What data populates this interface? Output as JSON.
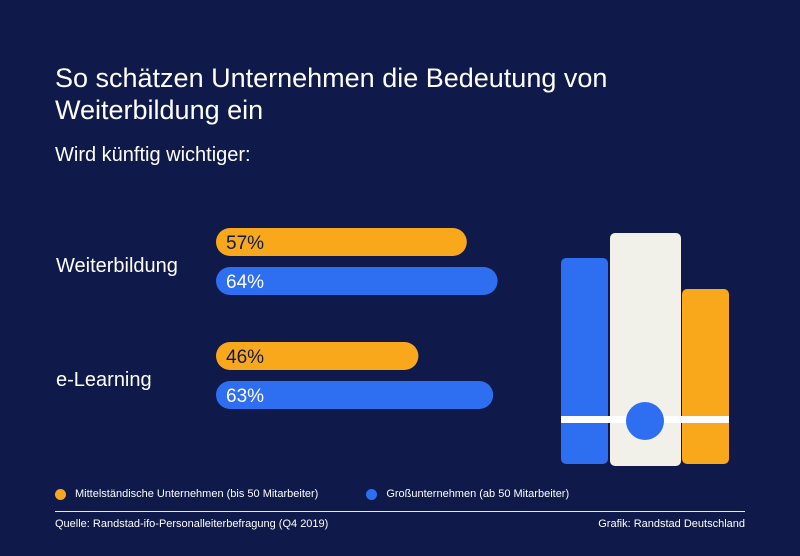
{
  "header": {
    "title": "So schätzen Unternehmen die Bedeutung von Weiterbildung ein",
    "subtitle": "Wird künftig wichtiger:"
  },
  "chart_data": {
    "type": "bar",
    "orientation": "horizontal",
    "title": "So schätzen Unternehmen die Bedeutung von Weiterbildung ein",
    "subtitle": "Wird künftig wichtiger:",
    "categories": [
      "Weiterbildung",
      "e-Learning"
    ],
    "series": [
      {
        "name": "Mittelständische Unternehmen (bis 50 Mitarbeiter)",
        "values": [
          57,
          46
        ],
        "labels": [
          "57%",
          "46%"
        ],
        "color": "#f9a81c"
      },
      {
        "name": "Großunternehmen (ab 50 Mitarbeiter)",
        "values": [
          64,
          63
        ],
        "labels": [
          "64%",
          "63%"
        ],
        "color": "#2e6ef0"
      }
    ],
    "xlim": [
      0,
      100
    ],
    "unit": "%",
    "grid": false,
    "legend_position": "bottom-left"
  },
  "legend": {
    "items": [
      {
        "label": "Mittelständische Unternehmen (bis 50 Mitarbeiter)",
        "color": "#f9a81c"
      },
      {
        "label": "Großunternehmen (ab 50 Mitarbeiter)",
        "color": "#2e6ef0"
      }
    ]
  },
  "footer": {
    "source": "Quelle: Randstad-ifo-Personalleiterbefragung (Q4 2019)",
    "credit": "Grafik: Randstad Deutschland"
  },
  "colors": {
    "background": "#0f1a4a",
    "orange": "#f9a81c",
    "blue": "#2e6ef0",
    "cream": "#f1f1ea",
    "label_dark": "#0f1a4a",
    "label_light": "#ffffff"
  }
}
